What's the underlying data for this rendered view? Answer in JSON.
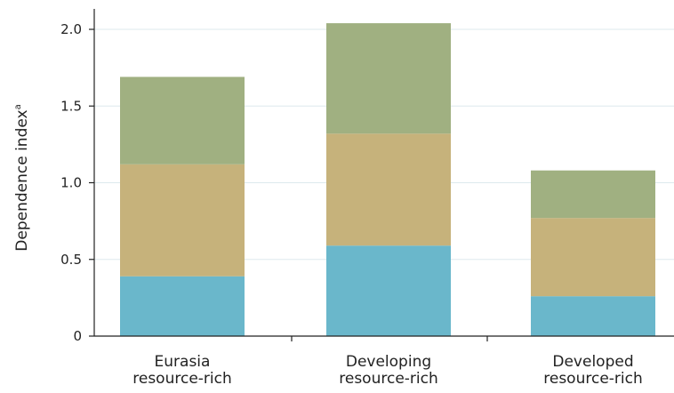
{
  "chart_data": {
    "type": "bar",
    "stacked": true,
    "categories": [
      [
        "Eurasia",
        "resource-rich"
      ],
      [
        "Developing",
        "resource-rich"
      ],
      [
        "Developed",
        "resource-rich"
      ]
    ],
    "series": [
      {
        "values": [
          0.39,
          0.59,
          0.26
        ],
        "color": "#6ab7cb"
      },
      {
        "values": [
          0.73,
          0.73,
          0.51
        ],
        "color": "#c6b27b"
      },
      {
        "values": [
          0.57,
          0.72,
          0.31
        ],
        "color": "#a0b081"
      }
    ],
    "ylabel": "Dependence index",
    "ylabel_sup": "a",
    "yticks": [
      0,
      0.5,
      1.0,
      1.5,
      2.0
    ],
    "ytick_labels": [
      "0",
      "0.5",
      "1.0",
      "1.5",
      "2.0"
    ],
    "ylim": [
      0,
      2.0
    ],
    "grid": true,
    "gridline_color": "#dde9ee"
  }
}
